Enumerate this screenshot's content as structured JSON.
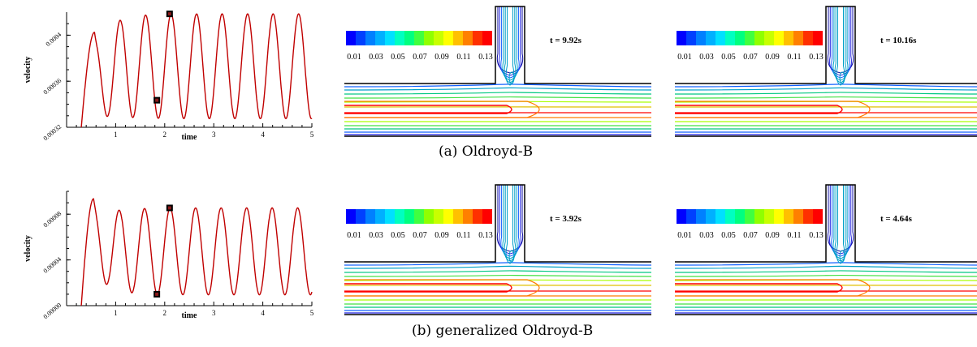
{
  "colors": {
    "line": "#c00000",
    "contour_palette": [
      "#0000ff",
      "#0040ff",
      "#0080ff",
      "#00b0ff",
      "#00e0ff",
      "#00ffc0",
      "#00ff80",
      "#40ff40",
      "#90ff00",
      "#c8ff00",
      "#ffff00",
      "#ffc000",
      "#ff8000",
      "#ff3000",
      "#ff0000"
    ],
    "contour_lines": [
      "#ff0000",
      "#ff7a00",
      "#e0c000",
      "#a8ff00",
      "#40e040",
      "#00c880",
      "#00a0c8",
      "#1060ff",
      "#2020e0",
      "#1010a0"
    ]
  },
  "rows": [
    {
      "caption": "(a) Oldroyd-B",
      "chart_data": {
        "type": "line",
        "xlabel": "time",
        "ylabel": "velocity",
        "xlim": [
          0,
          5
        ],
        "ylim": [
          0.00032,
          0.00042
        ],
        "xticks": [
          "1",
          "2",
          "3",
          "4",
          "5"
        ],
        "yticks": [
          "0.00032",
          "0.00036",
          "0.0004"
        ],
        "series": [
          {
            "signal": {
              "start_t": 0.3,
              "period": 0.52,
              "mean": 0.000373,
              "amp": 4.55e-05,
              "first_peak": 0.0004025,
              "first_peak_t": 0.57
            }
          }
        ],
        "markers": [
          {
            "x": 1.84,
            "y": 0.0003435
          },
          {
            "x": 2.1,
            "y": 0.0004185
          }
        ]
      },
      "panels": [
        {
          "colorbar_labels": [
            "0.01",
            "0.03",
            "0.05",
            "0.07",
            "0.09",
            "0.11",
            "0.13"
          ],
          "time_label": "t = 9.92s"
        },
        {
          "colorbar_labels": [
            "0.01",
            "0.03",
            "0.05",
            "0.07",
            "0.09",
            "0.11",
            "0.13"
          ],
          "time_label": "t = 10.16s"
        }
      ]
    },
    {
      "caption": "(b) generalized Oldroyd-B",
      "chart_data": {
        "type": "line",
        "xlabel": "time",
        "ylabel": "velocity",
        "xlim": [
          0,
          5
        ],
        "ylim": [
          0.0,
          0.0001
        ],
        "xticks": [
          "1",
          "2",
          "3",
          "4",
          "5"
        ],
        "yticks": [
          "0.00000",
          "0.00004",
          "0.00008"
        ],
        "series": [
          {
            "signal": {
              "start_t": 0.3,
              "period": 0.52,
              "mean": 4.75e-05,
              "amp": 3.8e-05,
              "first_peak": 9.35e-05,
              "first_peak_t": 0.55
            }
          }
        ],
        "markers": [
          {
            "x": 1.84,
            "y": 1e-05
          },
          {
            "x": 2.1,
            "y": 8.55e-05
          }
        ]
      },
      "panels": [
        {
          "colorbar_labels": [
            "0.01",
            "0.03",
            "0.05",
            "0.07",
            "0.09",
            "0.11",
            "0.13"
          ],
          "time_label": "t = 3.92s"
        },
        {
          "colorbar_labels": [
            "0.01",
            "0.03",
            "0.05",
            "0.07",
            "0.09",
            "0.11",
            "0.13"
          ],
          "time_label": "t = 4.64s"
        }
      ]
    }
  ]
}
